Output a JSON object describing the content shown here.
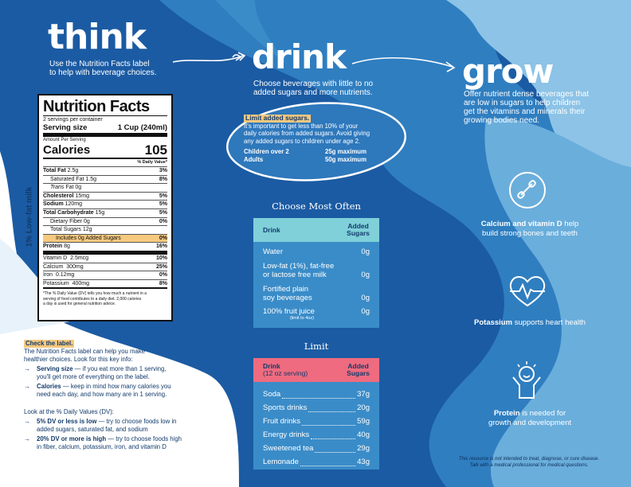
{
  "think": {
    "title": "think",
    "subtitle_1": "Use the Nutrition Facts label",
    "subtitle_2": "to help with beverage choices."
  },
  "drink": {
    "title": "drink",
    "subtitle_1": "Choose beverages with little to no",
    "subtitle_2": "added sugars and more nutrients."
  },
  "grow": {
    "title": "grow",
    "subtitle_1": "Offer nutrient dense beverages that",
    "subtitle_2": "are low in sugars to help children",
    "subtitle_3": "get the vitamins and minerals their",
    "subtitle_4": "growing bodies need."
  },
  "side_label": "1% Low-fat milk",
  "nutrition": {
    "title": "Nutrition Facts",
    "servings": "2 servings per container",
    "serving_size_label": "Serving size",
    "serving_size_value": "1 Cup (240ml)",
    "amount": "Amount Per Serving",
    "calories_label": "Calories",
    "calories_value": "105",
    "dv_header": "% Daily Value*",
    "rows": [
      {
        "label": "Total Fat",
        "amt": "2.5g",
        "dv": "3%"
      },
      {
        "label": "Saturated Fat",
        "amt": "1.5g",
        "dv": "8%"
      },
      {
        "label": "Trans",
        "amt": "Fat  0g",
        "dv": ""
      },
      {
        "label": "Cholesterol",
        "amt": "15mg",
        "dv": "5%"
      },
      {
        "label": "Sodium",
        "amt": "120mg",
        "dv": "5%"
      },
      {
        "label": "Total Carbohydrate",
        "amt": "15g",
        "dv": "5%"
      },
      {
        "label": "Dietary Fiber",
        "amt": "0g",
        "dv": "0%"
      },
      {
        "label": "Total Sugars",
        "amt": "12g",
        "dv": ""
      },
      {
        "label": "Includes 0g Added Sugars",
        "amt": "",
        "dv": "0%"
      },
      {
        "label": "Protein",
        "amt": "8g",
        "dv": "16%"
      },
      {
        "label": "Vitamin D",
        "amt": "2.5mcg",
        "dv": "10%"
      },
      {
        "label": "Calcium",
        "amt": "300mg",
        "dv": "25%"
      },
      {
        "label": "Iron",
        "amt": "0.12mg",
        "dv": "0%"
      },
      {
        "label": "Potassium",
        "amt": "400mg",
        "dv": "8%"
      }
    ],
    "footnote_1": "*The % Daily Value (DV) tells you how much a nutrient in a",
    "footnote_2": "serving of food contributes to a daily diet. 2,000 calories",
    "footnote_3": "a day is used for general nutrition advice."
  },
  "check": {
    "heading": "Check the label.",
    "intro_1": "The Nutrition Facts label can help you make",
    "intro_2": "healthier choices. Look for this key info:",
    "b1_bold": "Serving size",
    "b1_text": " — if you eat more than 1 serving,",
    "b1_text2": "you'll get more of everything on the label.",
    "b2_bold": "Calories",
    "b2_text": " — keep in mind how many calories you",
    "b2_text2": "need each day, and how many are in 1 serving.",
    "dv_intro": "Look at the % Daily Values (DV):",
    "b3_bold": "5% DV or less is low",
    "b3_text": " — try to choose foods low in",
    "b3_text2": "added sugars, saturated fat, and sodium",
    "b4_bold": "20% DV or more is high",
    "b4_text": " — try to choose foods high",
    "b4_text2": "in fiber, calcium, potassium, iron, and vitamin D"
  },
  "limit_box": {
    "heading": "Limit added sugars.",
    "text_1": "It's important to get less than 10% of your",
    "text_2": "daily calories from added sugars. Avoid giving",
    "text_3": "any added sugars to children under age 2.",
    "row1_label": "Children over 2",
    "row1_value": "25g maximum",
    "row2_label": "Adults",
    "row2_value": "50g maximum"
  },
  "often": {
    "title": "Choose Most Often",
    "col1": "Drink",
    "col2_1": "Added",
    "col2_2": "Sugars",
    "rows": [
      {
        "d1": "Water",
        "d2": "",
        "v": "0g"
      },
      {
        "d1": "Low-fat (1%), fat-free",
        "d2": "or lactose free milk",
        "v": "0g"
      },
      {
        "d1": "Fortified plain",
        "d2": "soy beverages",
        "v": "0g"
      },
      {
        "d1": "100% fruit juice",
        "d2": "(limit to 4oz)",
        "v": "0g"
      }
    ]
  },
  "limit": {
    "title": "Limit",
    "col1_1": "Drink",
    "col1_2": "(12 oz serving)",
    "col2_1": "Added",
    "col2_2": "Sugars",
    "rows": [
      {
        "d": "Soda",
        "v": "37g"
      },
      {
        "d": "Sports drinks",
        "v": "20g"
      },
      {
        "d": "Fruit drinks",
        "v": "59g"
      },
      {
        "d": "Energy drinks",
        "v": "40g"
      },
      {
        "d": "Sweetened tea",
        "v": "29g"
      },
      {
        "d": "Lemonade",
        "v": "43g"
      }
    ]
  },
  "benefits": {
    "b1_bold": "Calcium and vitamin D",
    "b1_text": " help",
    "b1_text2": "build strong bones and teeth",
    "b2_bold": "Potassium",
    "b2_text": " supports heart health",
    "b3_bold": "Protein",
    "b3_text": " is needed for",
    "b3_text2": "growth and development"
  },
  "disclaimer_1": "This resource is not intended to treat, diagnose, or cure disease.",
  "disclaimer_2": "Talk with a medical professional for medical questions.",
  "colors": {
    "navy": "#1b5ba3",
    "mid": "#3a8cc8",
    "light": "#a9d1ec",
    "teal": "#7fd0d9",
    "pink": "#ef6b7f",
    "orange": "#f7c97f"
  }
}
